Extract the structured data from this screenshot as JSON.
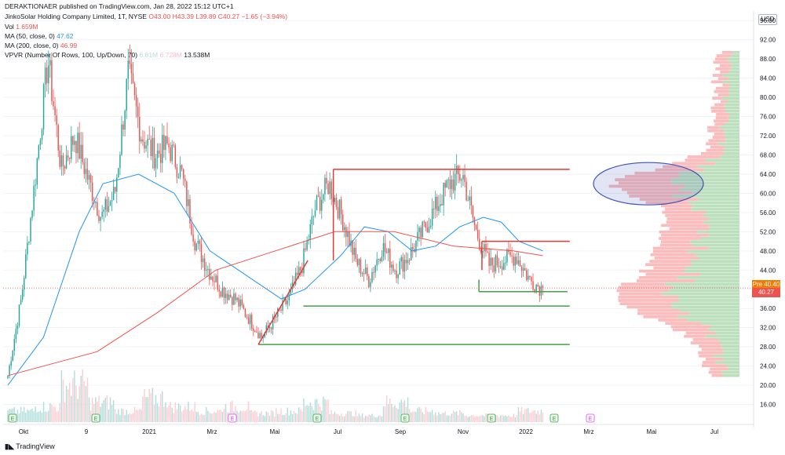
{
  "publisher": "DERAKTIONAER published on TradingView.com, Jan 28, 2022 15:12 UTC+1",
  "legend": {
    "symbol": "JinkoSolar Holding Company Limited, 1T, NYSE",
    "ohlc": "O43.00  H43.39  L39.89  C40.27  −1.65 (−3.94%)",
    "vol_label": "Vol",
    "vol_value": "1.659M",
    "ma50_label": "MA (50, close, 0)",
    "ma50_value": "47.62",
    "ma200_label": "MA (200, close, 0)",
    "ma200_value": "46.99",
    "vpvr_label": "VPVR (Number Of Rows, 100, Up/Down, 70)",
    "vpvr_up": "6.81M",
    "vpvr_down": "6.728M",
    "vpvr_total": "13.538M"
  },
  "currency": "USD",
  "pre_badge": "Pre",
  "pre_price": "40.40",
  "last_price": "40.27",
  "footer": "TradingView",
  "colors": {
    "up": "#26a69a",
    "down": "#ef5350",
    "ma50": "#2196f3",
    "ma200": "#ef5350",
    "vp_up": "#a5d6a7",
    "vp_down": "#f8a5a5"
  },
  "chart_data": {
    "type": "candlestick",
    "ylim": [
      12,
      98
    ],
    "y_ticks": [
      16,
      20,
      24,
      28,
      32,
      36,
      40,
      44,
      48,
      52,
      56,
      60,
      64,
      68,
      72,
      76,
      80,
      84,
      88,
      92,
      96
    ],
    "x_labels": [
      "Okt",
      "9",
      "2021",
      "Mrz",
      "Mai",
      "Jul",
      "Sep",
      "Nov",
      "2022",
      "Mrz",
      "Mai",
      "Jul"
    ],
    "price_anchors": [
      [
        "Okt",
        22
      ],
      [
        "",
        38
      ],
      [
        "",
        62
      ],
      [
        "9",
        88
      ],
      [
        "",
        65
      ],
      [
        "",
        72
      ],
      [
        "",
        63
      ],
      [
        "",
        55
      ],
      [
        "",
        60
      ],
      [
        "2021",
        85
      ],
      [
        "",
        72
      ],
      [
        "",
        68
      ],
      [
        "",
        70
      ],
      [
        "",
        64
      ],
      [
        "Mrz",
        50
      ],
      [
        "",
        44
      ],
      [
        "",
        40
      ],
      [
        "",
        38
      ],
      [
        "",
        34
      ],
      [
        "Mai",
        30
      ],
      [
        "",
        34
      ],
      [
        "",
        38
      ],
      [
        "",
        45
      ],
      [
        "Jul",
        57
      ],
      [
        "",
        62
      ],
      [
        "",
        55
      ],
      [
        "",
        46
      ],
      [
        "",
        42
      ],
      [
        "Sep",
        49
      ],
      [
        "",
        44
      ],
      [
        "",
        47
      ],
      [
        "",
        52
      ],
      [
        "",
        57
      ],
      [
        "",
        62
      ],
      [
        "Nov",
        64
      ],
      [
        "",
        52
      ],
      [
        "",
        45
      ],
      [
        "",
        46
      ],
      [
        "",
        47
      ],
      [
        "2022",
        42
      ],
      [
        "",
        40
      ]
    ],
    "ma50": [
      [
        0,
        20
      ],
      [
        6,
        30
      ],
      [
        12,
        52
      ],
      [
        16,
        62
      ],
      [
        22,
        64
      ],
      [
        28,
        60
      ],
      [
        34,
        48
      ],
      [
        40,
        43
      ],
      [
        46,
        38
      ],
      [
        50,
        40
      ],
      [
        56,
        47
      ],
      [
        60,
        53
      ],
      [
        64,
        52
      ],
      [
        68,
        48
      ],
      [
        72,
        49
      ],
      [
        76,
        53
      ],
      [
        80,
        55
      ],
      [
        83,
        54
      ],
      [
        86,
        50
      ],
      [
        90,
        48
      ]
    ],
    "ma200": [
      [
        0,
        22
      ],
      [
        15,
        27
      ],
      [
        25,
        35
      ],
      [
        35,
        44
      ],
      [
        45,
        48
      ],
      [
        55,
        52
      ],
      [
        65,
        52
      ],
      [
        75,
        49
      ],
      [
        85,
        48
      ],
      [
        90,
        47
      ]
    ],
    "volume_peaks": [
      0.2,
      0.3,
      0.8,
      0.4,
      0.2,
      0.5,
      0.3,
      0.2,
      0.3,
      0.15,
      0.2,
      0.4,
      0.15,
      0.1,
      0.4,
      0.2,
      0.15,
      0.1,
      0.1,
      0.2
    ],
    "annotations": {
      "red_lines": [
        [
          65,
          0.44,
          0.755
        ],
        [
          50,
          0.638,
          0.755
        ]
      ],
      "green_lines": [
        [
          36.5,
          0.4,
          0.755
        ],
        [
          28.5,
          0.34,
          0.755
        ],
        [
          39.5,
          0.634,
          0.752
        ]
      ],
      "red_diagonal": [
        [
          0.34,
          28.5
        ],
        [
          0.406,
          46
        ]
      ],
      "ellipse_center_price": 62
    }
  }
}
